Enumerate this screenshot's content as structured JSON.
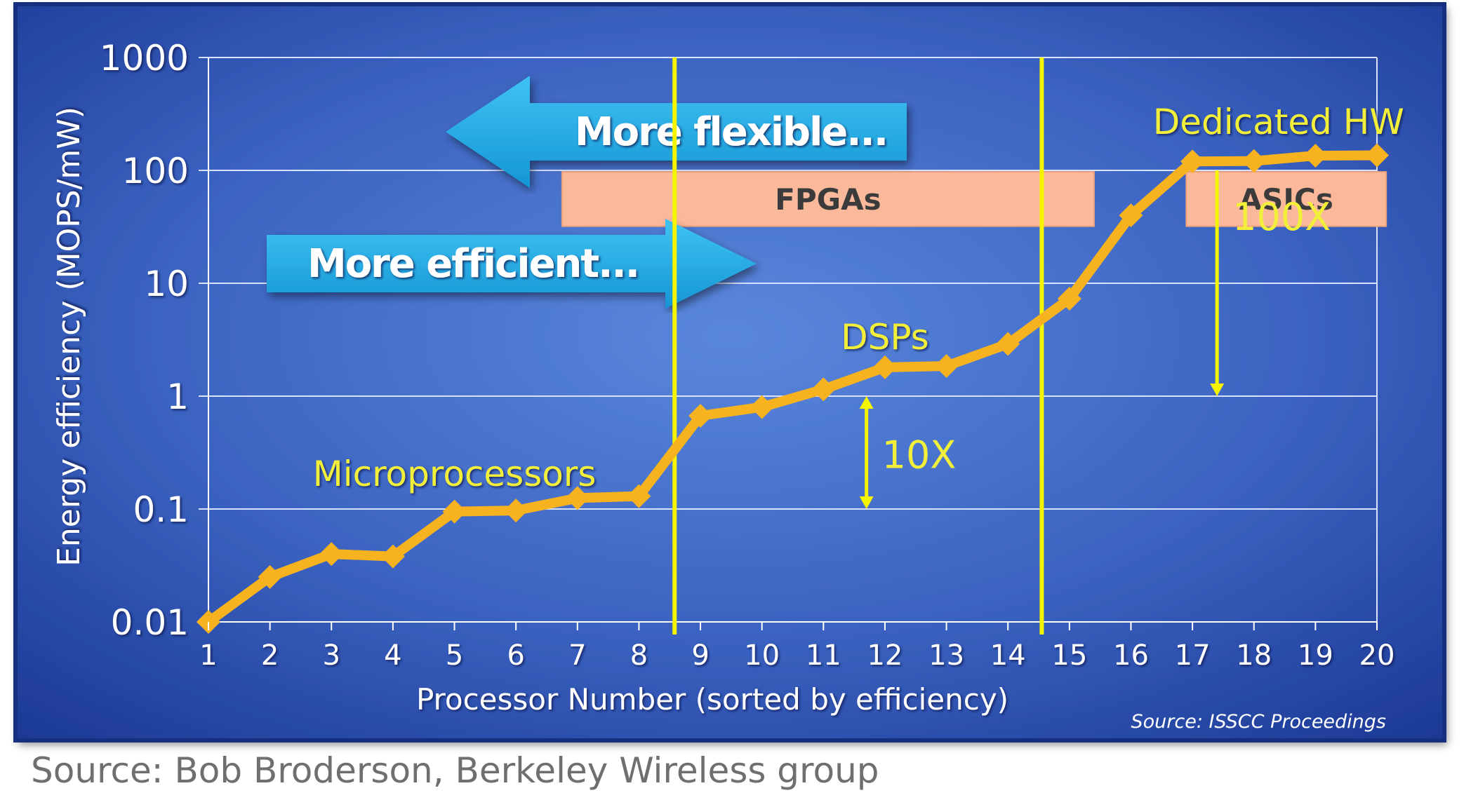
{
  "chart_data": {
    "type": "line",
    "xlabel": "Processor Number (sorted by efficiency)",
    "ylabel": "Energy efficiency (MOPS/mW)",
    "y_scale": "log",
    "ylim": [
      0.01,
      1000
    ],
    "xlim": [
      1,
      20
    ],
    "x_ticks": [
      "1",
      "2",
      "3",
      "4",
      "5",
      "6",
      "7",
      "8",
      "9",
      "10",
      "11",
      "12",
      "13",
      "14",
      "15",
      "16",
      "17",
      "18",
      "19",
      "20"
    ],
    "y_ticks": [
      "0.01",
      "0.1",
      "1",
      "10",
      "100",
      "1000"
    ],
    "grid": true,
    "series": [
      {
        "x": [
          1,
          2,
          3,
          4,
          5,
          6,
          7,
          8,
          9,
          10,
          11,
          12,
          13,
          14,
          15,
          16,
          17,
          18,
          19,
          20
        ],
        "y": [
          0.01,
          0.025,
          0.04,
          0.038,
          0.095,
          0.097,
          0.125,
          0.13,
          0.67,
          0.8,
          1.15,
          1.8,
          1.85,
          2.9,
          7.3,
          40,
          120,
          121,
          135,
          136
        ],
        "color": "#f7b21f"
      }
    ],
    "vlines": [
      8.58,
      14.55
    ],
    "vline_color": "#f5f500",
    "region_labels": [
      {
        "text": "Microprocessors",
        "x": 5.0,
        "y": 0.16
      },
      {
        "text": "DSPs",
        "x": 12.0,
        "y": 2.6
      },
      {
        "text": "Dedicated HW",
        "x": 18.4,
        "y": 210
      }
    ],
    "bands": [
      {
        "label": "FPGAs",
        "x_start": 6.75,
        "x_end": 15.4,
        "y_top": 97,
        "y_bottom": 32,
        "color": "#fbb99b"
      },
      {
        "label": "ASICs",
        "x_start": 16.9,
        "x_end": 20.15,
        "y_top": 97,
        "y_bottom": 32,
        "color": "#fbb99b"
      }
    ],
    "arrows": [
      {
        "label": "More flexible...",
        "direction": "left"
      },
      {
        "label": "More efficient...",
        "direction": "right"
      }
    ],
    "ranges": [
      {
        "label": "10X",
        "x": 11.7,
        "from": 0.1,
        "to": 1.0,
        "heads": "both"
      },
      {
        "label": "100X",
        "x": 17.4,
        "from": 100,
        "to": 1.0,
        "heads": "down"
      }
    ],
    "source_note": "Source: ISSCC Proceedings",
    "colors": {
      "background_outer": "#1b3a9a",
      "background_inner": "#4f7ed6",
      "line": "#f7b21f",
      "label": "#f2ef3a",
      "arrow": "#22aee6",
      "band": "#fbb99b"
    }
  },
  "caption": "Source: Bob Broderson, Berkeley Wireless group"
}
